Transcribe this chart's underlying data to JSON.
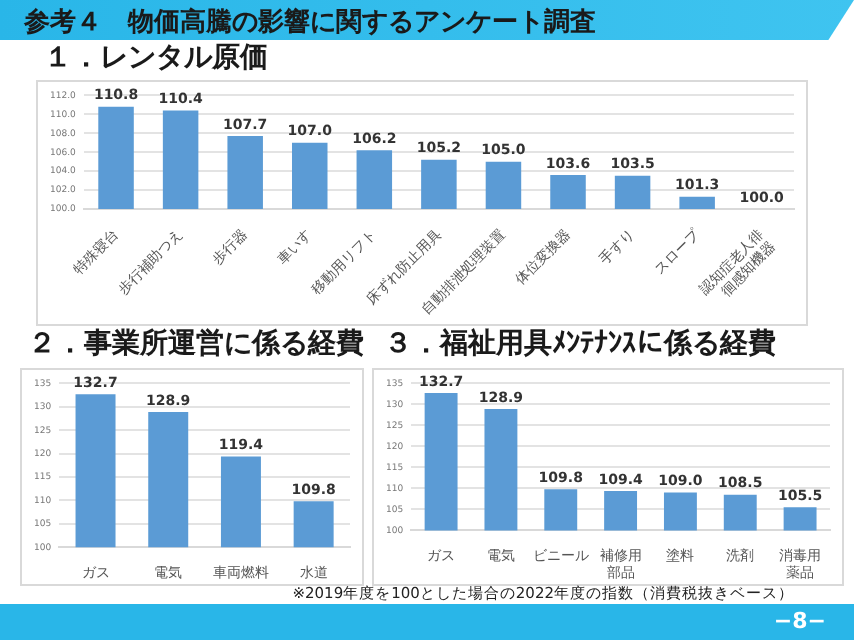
{
  "chart_data": [
    {
      "type": "bar",
      "title": "参考４　物価高騰の影響に関するアンケート調査",
      "subtitle": "１．レンタル原価",
      "categories": [
        "特殊寝台",
        "歩行補助つえ",
        "歩行器",
        "車いす",
        "移動用リフト",
        "床ずれ防止用具",
        "自動排泄処理装置",
        "体位変換器",
        "手すり",
        "スロープ",
        "認知症老人徘徊感知機器"
      ],
      "values": [
        110.8,
        110.4,
        107.7,
        107.0,
        106.2,
        105.2,
        105.0,
        103.6,
        103.5,
        101.3,
        100.0
      ],
      "value_labels": [
        "110.8",
        "110.4",
        "107.7",
        "107.0",
        "106.2",
        "105.2",
        "105.0",
        "103.6",
        "103.5",
        "101.3",
        "100.0"
      ],
      "color": "#5b9bd5",
      "ylim": [
        100,
        112
      ],
      "yticks": [
        {
          "value": 100,
          "label": "100.0"
        },
        {
          "value": 102,
          "label": "102.0"
        },
        {
          "value": 104,
          "label": "104.0"
        },
        {
          "value": 106,
          "label": "106.0"
        },
        {
          "value": 108,
          "label": "108.0"
        },
        {
          "value": 110,
          "label": "110.0"
        },
        {
          "value": 112,
          "label": "112.0"
        }
      ],
      "grid": "y"
    },
    {
      "type": "bar",
      "title": "２．事業所運営に係る経費",
      "categories": [
        "ガス",
        "電気",
        "車両燃料",
        "水道"
      ],
      "values": [
        132.7,
        128.9,
        119.4,
        109.8
      ],
      "value_labels": [
        "132.7",
        "128.9",
        "119.4",
        "109.8"
      ],
      "color": "#5b9bd5",
      "ylim": [
        100,
        135
      ],
      "yticks": [
        100,
        105,
        110,
        115,
        120,
        125,
        130,
        135
      ],
      "grid": "y"
    },
    {
      "type": "bar",
      "title": "３．福祉用具ﾒﾝﾃﾅﾝｽに係る経費",
      "categories": [
        "ガス",
        "電気",
        "ビニール",
        "補修用部品",
        "塗料",
        "洗剤",
        "消毒用薬品"
      ],
      "values": [
        132.7,
        128.9,
        109.8,
        109.4,
        109.0,
        108.5,
        105.5
      ],
      "value_labels": [
        "132.7",
        "128.9",
        "109.8",
        "109.4",
        "109.0",
        "108.5",
        "105.5"
      ],
      "color": "#5b9bd5",
      "ylim": [
        100,
        135
      ],
      "yticks": [
        100,
        105,
        110,
        115,
        120,
        125,
        130,
        135
      ],
      "grid": "y",
      "annotations": [
        "※2019年度を100とした場合の2022年度の指数（消費税抜きベース）",
        "−8−"
      ]
    }
  ]
}
